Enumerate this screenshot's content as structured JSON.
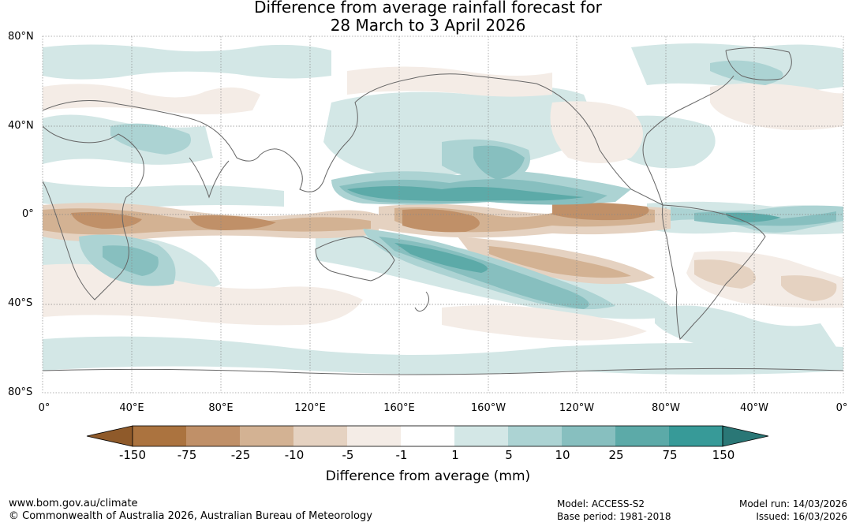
{
  "title": {
    "line1": "Difference from average rainfall forecast for",
    "line2": "28 March to 3 April 2026"
  },
  "map": {
    "lat_labels": [
      "80°N",
      "40°N",
      "0°",
      "40°S",
      "80°S"
    ],
    "lon_labels": [
      "0°",
      "40°E",
      "80°E",
      "120°E",
      "160°E",
      "160°W",
      "120°W",
      "80°W",
      "40°W",
      "0°"
    ]
  },
  "colorbar": {
    "label": "Difference from average (mm)",
    "ticks": [
      "-150",
      "-75",
      "-25",
      "-10",
      "-5",
      "-1",
      "1",
      "5",
      "10",
      "25",
      "75",
      "150"
    ],
    "colors": [
      "#8f5a2a",
      "#ab733f",
      "#c09068",
      "#d3b293",
      "#e5d2c1",
      "#f4ece6",
      "#ffffff",
      "#d3e7e6",
      "#acd3d3",
      "#87bfbf",
      "#5caaa8",
      "#379a98",
      "#2a7776"
    ]
  },
  "footer": {
    "url": "www.bom.gov.au/climate",
    "copyright": "© Commonwealth of Australia 2026, Australian Bureau of Meteorology",
    "model": "Model: ACCESS-S2",
    "base_period": "Base period: 1981-2018",
    "model_run": "Model run: 14/03/2026",
    "issued": "Issued: 16/03/2026"
  }
}
